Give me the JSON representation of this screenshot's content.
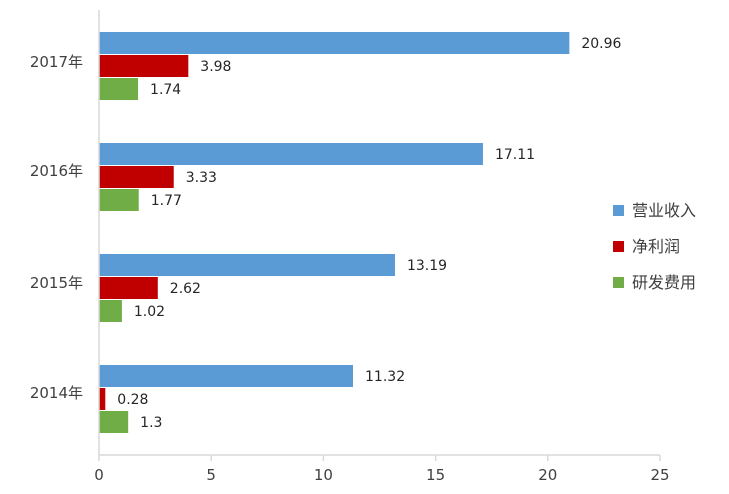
{
  "chart_data": {
    "type": "bar",
    "orientation": "horizontal",
    "categories": [
      "2014年",
      "2015年",
      "2016年",
      "2017年"
    ],
    "series": [
      {
        "name": "营业收入",
        "color": "#5B9BD5",
        "values": [
          11.32,
          13.19,
          17.11,
          20.96
        ],
        "labels": [
          "11.32",
          "13.19",
          "17.11",
          "20.96"
        ]
      },
      {
        "name": "净利润",
        "color": "#C00000",
        "values": [
          0.28,
          2.62,
          3.33,
          3.98
        ],
        "labels": [
          "0.28",
          "2.62",
          "3.33",
          "3.98"
        ]
      },
      {
        "name": "研发费用",
        "color": "#70AD47",
        "values": [
          1.3,
          1.02,
          1.77,
          1.74
        ],
        "labels": [
          "1.3",
          "1.02",
          "1.77",
          "1.74"
        ]
      }
    ],
    "xlim": [
      0,
      25
    ],
    "xticks": [
      "0",
      "5",
      "10",
      "15",
      "20",
      "25"
    ],
    "title": "",
    "xlabel": "",
    "ylabel": "",
    "grid": false,
    "legend": "right"
  }
}
